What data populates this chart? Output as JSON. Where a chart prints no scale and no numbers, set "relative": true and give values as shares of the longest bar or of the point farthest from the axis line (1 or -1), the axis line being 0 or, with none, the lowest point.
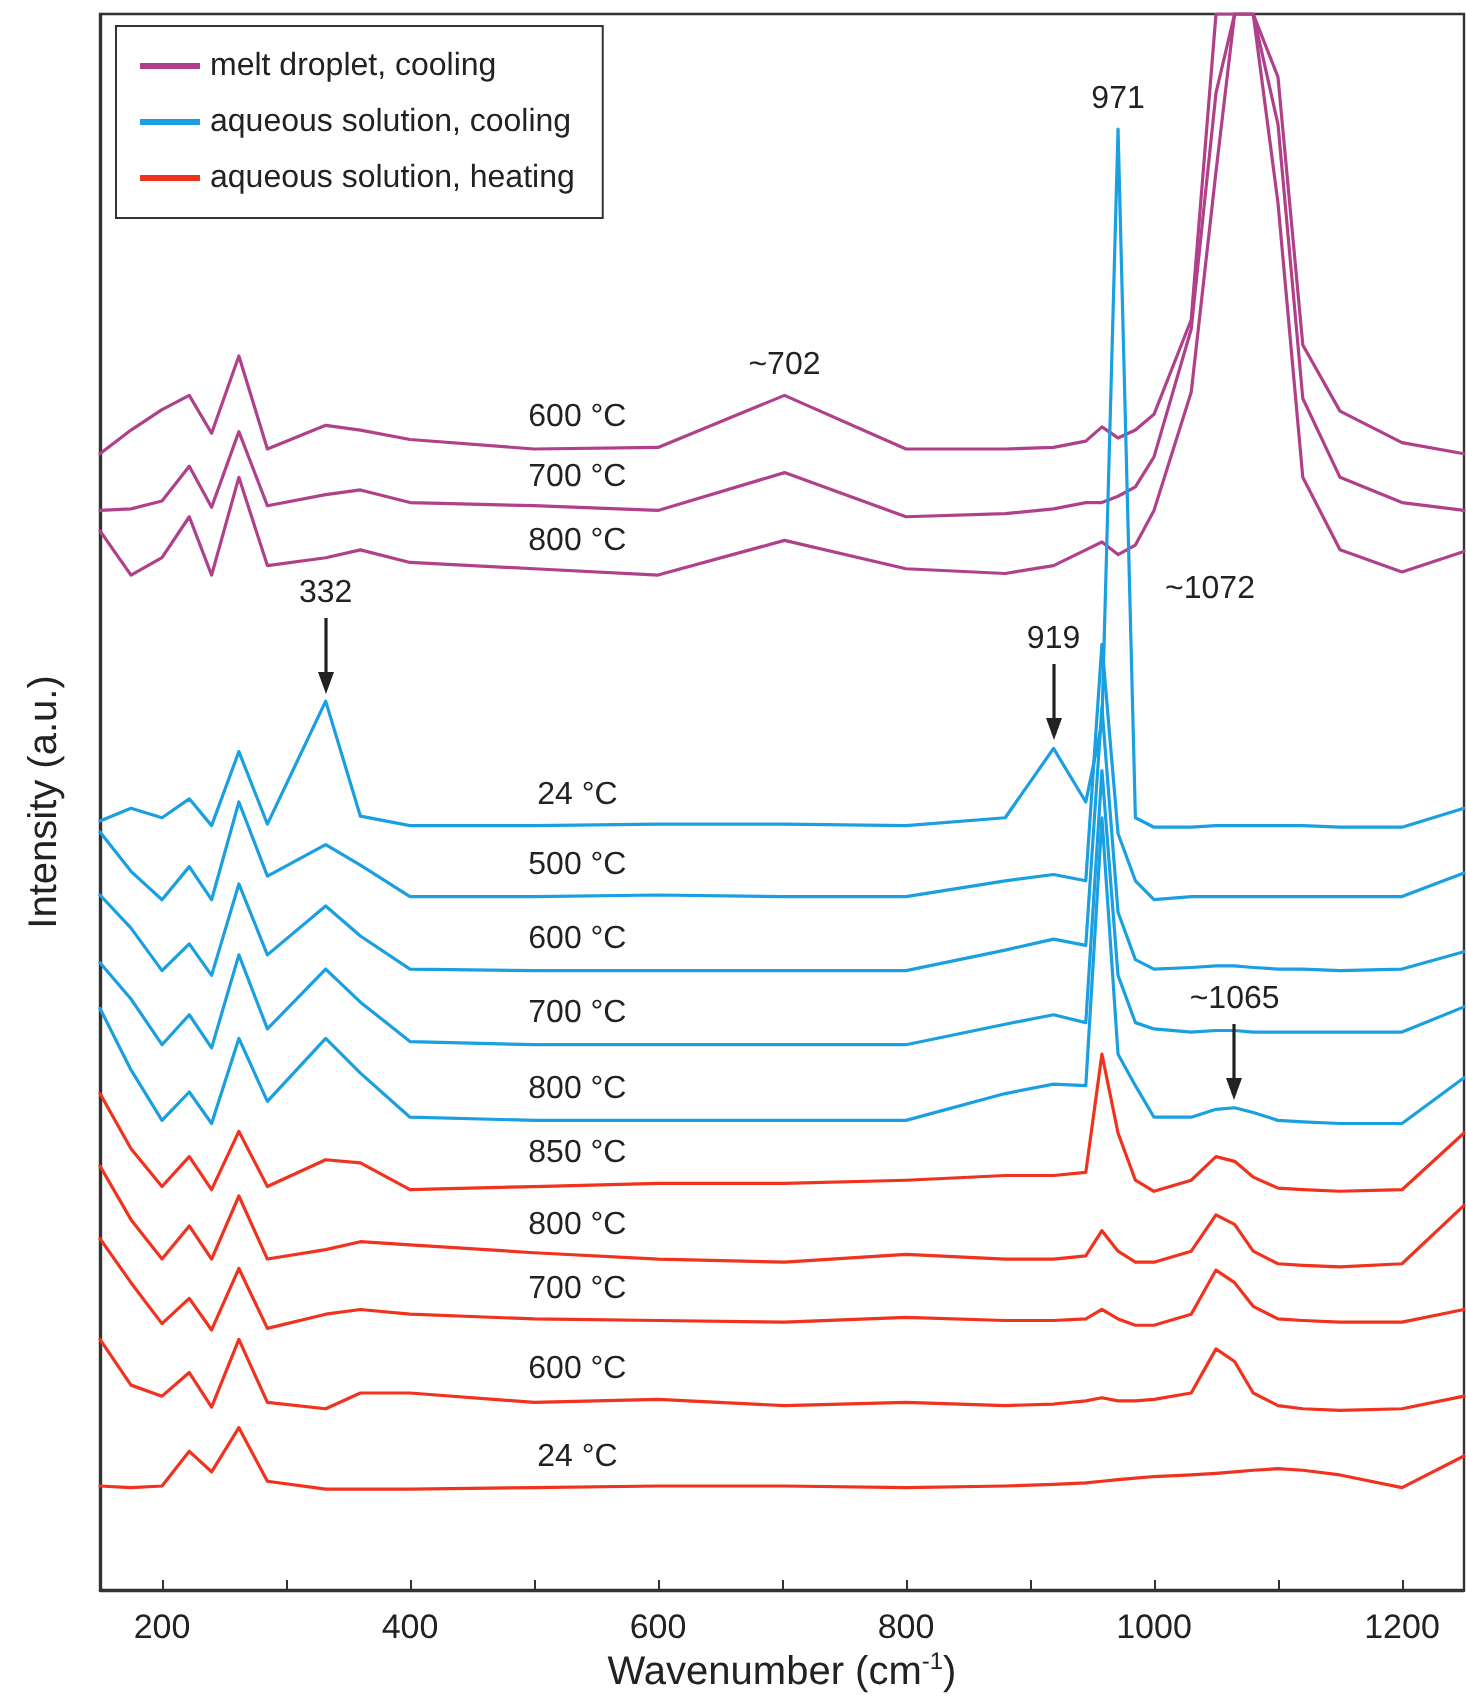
{
  "chart_data": {
    "type": "line",
    "relative": true,
    "xlabel": "Wavenumber (cm$^{-1}$)",
    "ylabel": "Intensity (a.u.)",
    "xlim": [
      150,
      1250
    ],
    "xticks": [
      200,
      {
        "value": 300,
        "label": null
      },
      400,
      {
        "value": 500,
        "label": null
      },
      600,
      {
        "value": 700,
        "label": null
      },
      800,
      {
        "value": 900,
        "label": null
      },
      1000,
      {
        "value": 1100,
        "label": null
      },
      1200
    ],
    "grid": false,
    "legend": "top left",
    "marker": "none",
    "x": [
      150,
      175,
      200,
      222,
      240,
      262,
      285,
      332,
      360,
      400,
      500,
      600,
      702,
      800,
      880,
      919,
      945,
      958,
      971,
      985,
      1000,
      1030,
      1050,
      1065,
      1080,
      1100,
      1120,
      1150,
      1200,
      1250
    ],
    "series": [
      {
        "name": "melt droplet, cooling",
        "color": "#b0408a",
        "values": [
          0.721,
          0.736,
          0.749,
          0.758,
          0.734,
          0.783,
          0.724,
          0.739,
          0.736,
          0.73,
          0.724,
          0.725,
          0.758,
          0.724,
          0.724,
          0.725,
          0.729,
          0.738,
          0.731,
          0.736,
          0.746,
          0.806,
          1,
          1,
          1,
          0.96,
          0.79,
          0.748,
          0.728,
          0.721
        ]
      },
      {
        "color": "#b0408a",
        "values": [
          0.685,
          0.686,
          0.691,
          0.713,
          0.687,
          0.735,
          0.688,
          0.695,
          0.698,
          0.69,
          0.688,
          0.685,
          0.709,
          0.681,
          0.683,
          0.686,
          0.69,
          0.69,
          0.694,
          0.7,
          0.719,
          0.8,
          0.95,
          1,
          1,
          0.93,
          0.756,
          0.706,
          0.69,
          0.685
        ]
      },
      {
        "color": "#b0408a",
        "values": [
          0.672,
          0.644,
          0.655,
          0.681,
          0.644,
          0.706,
          0.65,
          0.655,
          0.66,
          0.652,
          0.648,
          0.644,
          0.666,
          0.648,
          0.645,
          0.65,
          0.66,
          0.665,
          0.657,
          0.663,
          0.685,
          0.76,
          0.9,
          1,
          1,
          0.88,
          0.706,
          0.66,
          0.646,
          0.659
        ]
      },
      {
        "name": "aqueous solution, cooling",
        "color": "#1a9fe0",
        "values": [
          0.488,
          0.496,
          0.49,
          0.502,
          0.485,
          0.532,
          0.486,
          0.564,
          0.491,
          0.485,
          0.485,
          0.486,
          0.486,
          0.485,
          0.49,
          0.534,
          0.5,
          0.55,
          0.927,
          0.49,
          0.484,
          0.484,
          0.485,
          0.485,
          0.485,
          0.485,
          0.485,
          0.484,
          0.484,
          0.496
        ]
      },
      {
        "color": "#1a9fe0",
        "values": [
          0.481,
          0.456,
          0.438,
          0.459,
          0.438,
          0.5,
          0.453,
          0.473,
          0.46,
          0.44,
          0.44,
          0.441,
          0.44,
          0.44,
          0.45,
          0.454,
          0.45,
          0.6,
          0.48,
          0.45,
          0.438,
          0.44,
          0.44,
          0.44,
          0.44,
          0.44,
          0.44,
          0.44,
          0.44,
          0.455
        ]
      },
      {
        "color": "#1a9fe0",
        "values": [
          0.441,
          0.42,
          0.393,
          0.41,
          0.39,
          0.448,
          0.403,
          0.434,
          0.415,
          0.394,
          0.393,
          0.393,
          0.393,
          0.393,
          0.406,
          0.413,
          0.409,
          0.56,
          0.43,
          0.4,
          0.394,
          0.395,
          0.396,
          0.396,
          0.395,
          0.394,
          0.394,
          0.393,
          0.394,
          0.405
        ]
      },
      {
        "color": "#1a9fe0",
        "values": [
          0.398,
          0.375,
          0.346,
          0.365,
          0.344,
          0.403,
          0.356,
          0.394,
          0.373,
          0.348,
          0.346,
          0.346,
          0.346,
          0.346,
          0.359,
          0.365,
          0.36,
          0.52,
          0.39,
          0.36,
          0.356,
          0.354,
          0.355,
          0.355,
          0.354,
          0.354,
          0.354,
          0.354,
          0.354,
          0.37
        ]
      },
      {
        "color": "#1a9fe0",
        "values": [
          0.369,
          0.33,
          0.298,
          0.316,
          0.296,
          0.35,
          0.31,
          0.35,
          0.328,
          0.3,
          0.298,
          0.298,
          0.298,
          0.298,
          0.315,
          0.321,
          0.32,
          0.49,
          0.34,
          0.32,
          0.3,
          0.3,
          0.305,
          0.306,
          0.303,
          0.298,
          0.297,
          0.296,
          0.296,
          0.325
        ]
      },
      {
        "name": "aqueous solution, heating",
        "color": "#f0321e",
        "values": [
          0.315,
          0.28,
          0.256,
          0.275,
          0.254,
          0.291,
          0.256,
          0.273,
          0.271,
          0.254,
          0.256,
          0.258,
          0.258,
          0.26,
          0.263,
          0.263,
          0.265,
          0.34,
          0.29,
          0.26,
          0.253,
          0.26,
          0.275,
          0.272,
          0.262,
          0.255,
          0.254,
          0.253,
          0.254,
          0.29
        ]
      },
      {
        "color": "#f0321e",
        "values": [
          0.269,
          0.235,
          0.21,
          0.231,
          0.21,
          0.25,
          0.21,
          0.216,
          0.221,
          0.219,
          0.214,
          0.21,
          0.208,
          0.213,
          0.21,
          0.21,
          0.212,
          0.228,
          0.215,
          0.208,
          0.208,
          0.215,
          0.238,
          0.232,
          0.215,
          0.207,
          0.206,
          0.205,
          0.207,
          0.244
        ]
      },
      {
        "color": "#f0321e",
        "values": [
          0.223,
          0.195,
          0.169,
          0.185,
          0.165,
          0.204,
          0.166,
          0.175,
          0.178,
          0.175,
          0.172,
          0.171,
          0.17,
          0.173,
          0.171,
          0.171,
          0.172,
          0.178,
          0.172,
          0.168,
          0.168,
          0.175,
          0.203,
          0.195,
          0.18,
          0.172,
          0.171,
          0.17,
          0.17,
          0.178
        ]
      },
      {
        "color": "#f0321e",
        "values": [
          0.159,
          0.13,
          0.123,
          0.138,
          0.116,
          0.159,
          0.119,
          0.115,
          0.125,
          0.125,
          0.119,
          0.121,
          0.117,
          0.119,
          0.117,
          0.118,
          0.12,
          0.122,
          0.12,
          0.12,
          0.121,
          0.125,
          0.153,
          0.145,
          0.125,
          0.117,
          0.115,
          0.114,
          0.115,
          0.123
        ]
      },
      {
        "color": "#f0321e",
        "values": [
          0.066,
          0.065,
          0.066,
          0.088,
          0.075,
          0.103,
          0.069,
          0.064,
          0.064,
          0.064,
          0.065,
          0.066,
          0.066,
          0.065,
          0.066,
          0.067,
          0.068,
          0.069,
          0.07,
          0.071,
          0.072,
          0.073,
          0.074,
          0.075,
          0.076,
          0.077,
          0.076,
          0.073,
          0.065,
          0.085
        ]
      }
    ],
    "annotations": [
      {
        "text": "971",
        "x": 971,
        "y": 0.927
      },
      {
        "text": "~702",
        "x": 702,
        "y": 0.758
      },
      "~1072",
      {
        "text": "332",
        "x": 332,
        "y": 0.564
      },
      {
        "text": "919",
        "x": 919,
        "y": 0.534
      },
      {
        "text": "~1065",
        "x": 1065,
        "y": 0.306
      },
      {
        "text": "600 °C",
        "x": 535,
        "y": 0.724
      },
      {
        "text": "700 °C",
        "x": 535,
        "y": 0.686
      },
      {
        "text": "800 °C",
        "x": 535,
        "y": 0.646
      },
      {
        "text": "24 °C",
        "x": 535,
        "y": 0.485
      },
      {
        "text": "500 °C",
        "x": 535,
        "y": 0.44
      },
      {
        "text": "600 °C",
        "x": 535,
        "y": 0.393
      },
      {
        "text": "700 °C",
        "x": 535,
        "y": 0.346
      },
      {
        "text": "800 °C",
        "x": 535,
        "y": 0.298
      },
      {
        "text": "850 °C",
        "x": 535,
        "y": 0.257
      },
      {
        "text": "800 °C",
        "x": 535,
        "y": 0.212
      },
      {
        "text": "700 °C",
        "x": 535,
        "y": 0.171
      },
      {
        "text": "600 °C",
        "x": 535,
        "y": 0.12
      },
      {
        "text": "24 °C",
        "x": 535,
        "y": 0.065
      }
    ]
  }
}
